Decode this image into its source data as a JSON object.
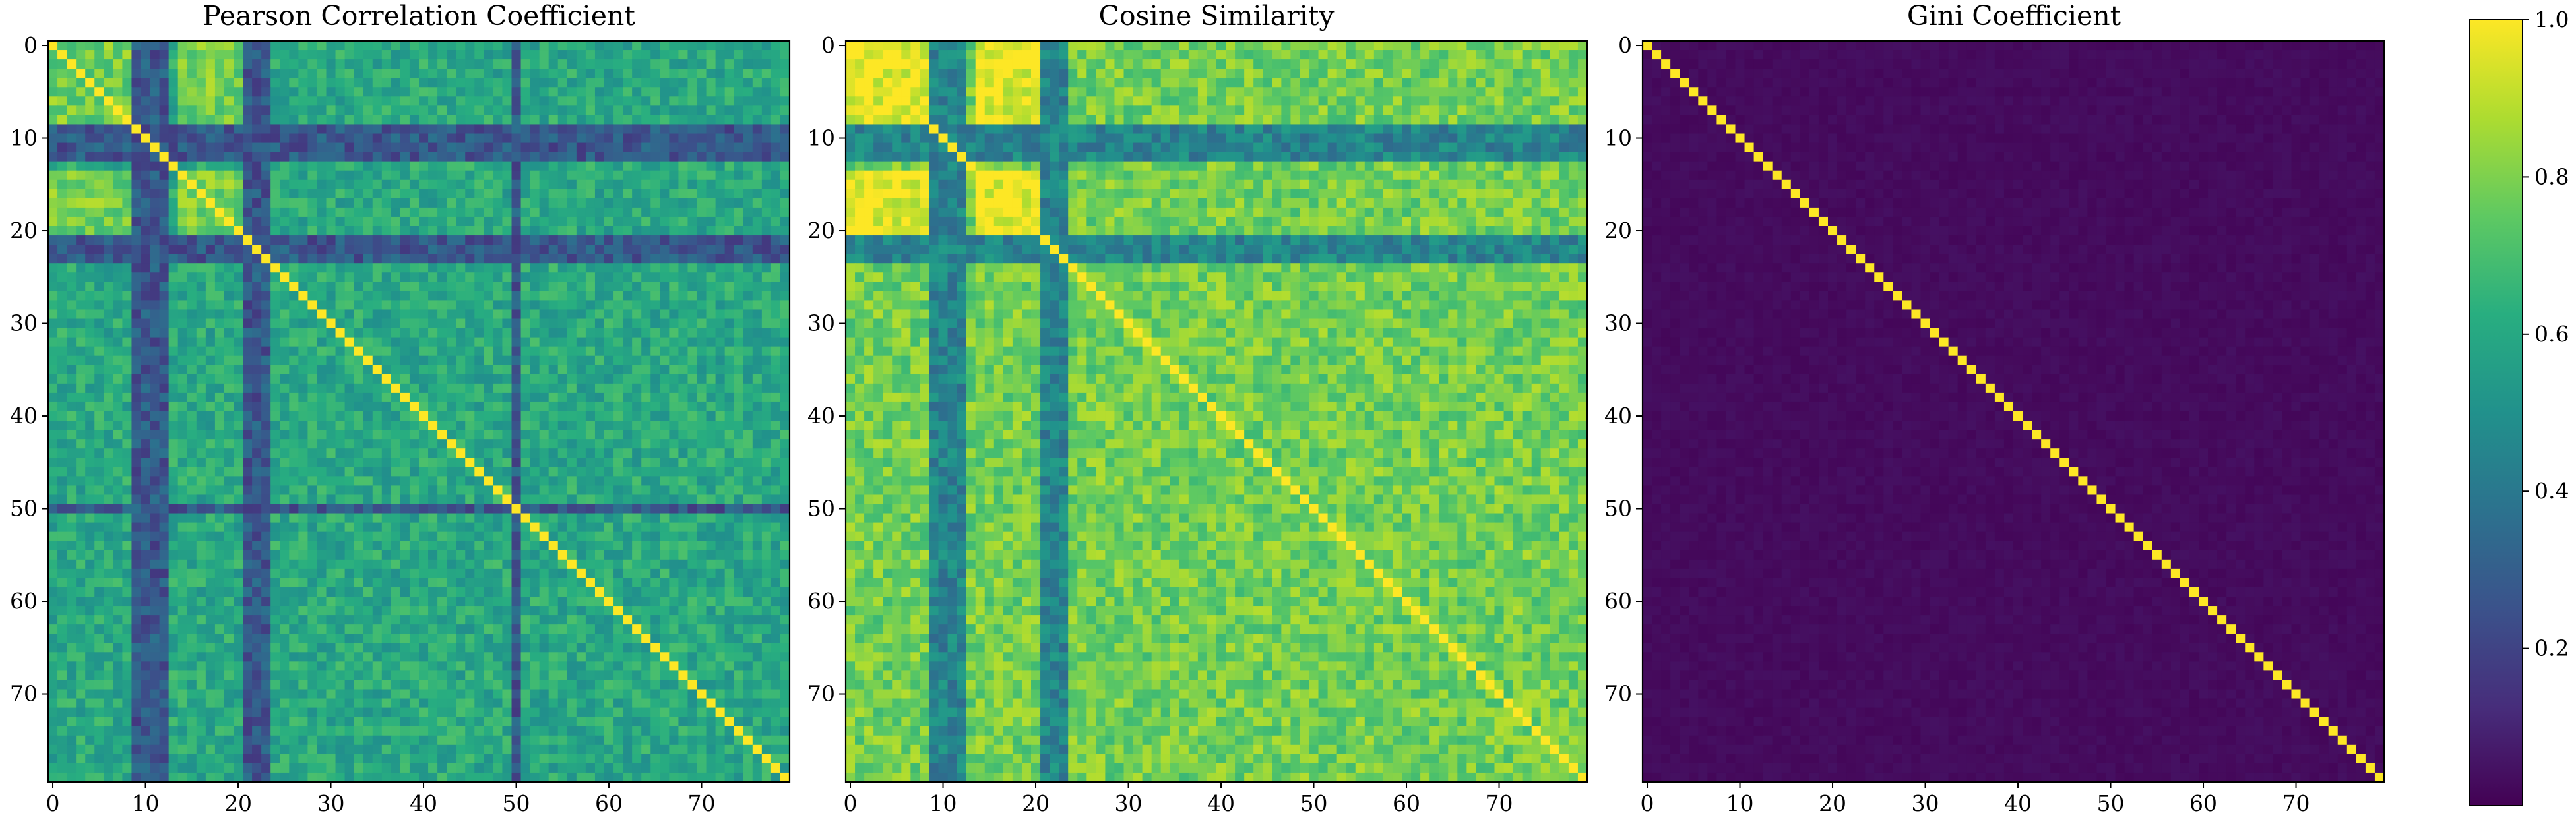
{
  "figure": {
    "description": "Three 80x80 similarity heatmaps with shared viridis colorbar"
  },
  "chart_data": [
    {
      "type": "heatmap",
      "title": "Pearson Correlation Coefficient",
      "matrix_size": 80,
      "x_ticks": [
        0,
        10,
        20,
        30,
        40,
        50,
        60,
        70
      ],
      "y_ticks": [
        0,
        10,
        20,
        30,
        40,
        50,
        60,
        70
      ],
      "value_range": [
        0.05,
        1.0
      ],
      "diagonal_value": 1.0,
      "typical_off_diagonal": 0.6,
      "low_similarity_indices": [
        9,
        10,
        11,
        12,
        21,
        22,
        23,
        50
      ],
      "high_similarity_indices": [
        0,
        1,
        2,
        3,
        4,
        5,
        6,
        7,
        8,
        14,
        15,
        16,
        17,
        18,
        19,
        20
      ],
      "colormap": "viridis"
    },
    {
      "type": "heatmap",
      "title": "Cosine Similarity",
      "matrix_size": 80,
      "x_ticks": [
        0,
        10,
        20,
        30,
        40,
        50,
        60,
        70
      ],
      "y_ticks": [
        0,
        10,
        20,
        30,
        40,
        50,
        60,
        70
      ],
      "value_range": [
        0.05,
        1.0
      ],
      "diagonal_value": 1.0,
      "typical_off_diagonal": 0.78,
      "low_similarity_indices": [
        9,
        10,
        11,
        12,
        21,
        22,
        23
      ],
      "high_similarity_indices": [
        0,
        1,
        2,
        3,
        4,
        5,
        6,
        7,
        8,
        14,
        15,
        16,
        17,
        18,
        19,
        20
      ],
      "colormap": "viridis"
    },
    {
      "type": "heatmap",
      "title": "Gini Coefficient",
      "matrix_size": 80,
      "x_ticks": [
        0,
        10,
        20,
        30,
        40,
        50,
        60,
        70
      ],
      "y_ticks": [
        0,
        10,
        20,
        30,
        40,
        50,
        60,
        70
      ],
      "value_range": [
        0.0,
        1.0
      ],
      "diagonal_value": 1.0,
      "typical_off_diagonal": 0.03,
      "colormap": "viridis"
    }
  ],
  "colorbar": {
    "min": 0.0,
    "max": 1.0,
    "ticks": [
      0.2,
      0.4,
      0.6,
      0.8,
      1.0
    ],
    "tick_labels": [
      "0.2",
      "0.4",
      "0.6",
      "0.8",
      "1.0"
    ],
    "colormap": "viridis"
  },
  "colors": {
    "frame": "#000000",
    "background": "#ffffff"
  }
}
